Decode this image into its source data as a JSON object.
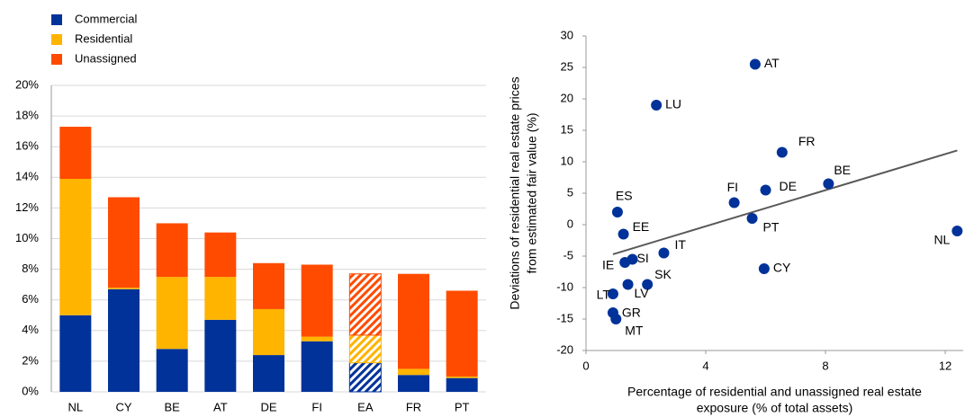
{
  "chart_data": [
    {
      "type": "stacked_bar",
      "categories": [
        "NL",
        "CY",
        "BE",
        "AT",
        "DE",
        "FI",
        "EA",
        "FR",
        "PT"
      ],
      "series": [
        {
          "name": "Commercial",
          "color": "#003299",
          "values": [
            5.0,
            6.7,
            2.8,
            4.7,
            2.4,
            3.3,
            1.9,
            1.1,
            0.9
          ]
        },
        {
          "name": "Residential",
          "color": "#ffb400",
          "values": [
            8.9,
            0.1,
            4.7,
            2.8,
            3.0,
            0.3,
            1.8,
            0.4,
            0.1
          ]
        },
        {
          "name": "Unassigned",
          "color": "#ff4b00",
          "values": [
            3.4,
            5.9,
            3.5,
            2.9,
            3.0,
            4.7,
            4.0,
            6.2,
            5.6
          ]
        }
      ],
      "hatched": [
        false,
        false,
        false,
        false,
        false,
        false,
        true,
        false,
        false
      ],
      "ylim": [
        0,
        20
      ],
      "yticks": [
        {
          "value": 0,
          "label": "0%"
        },
        {
          "value": 2,
          "label": "2%"
        },
        {
          "value": 4,
          "label": "4%"
        },
        {
          "value": 6,
          "label": "6%"
        },
        {
          "value": 8,
          "label": "8%"
        },
        {
          "value": 10,
          "label": "10%"
        },
        {
          "value": 12,
          "label": "12%"
        },
        {
          "value": 14,
          "label": "14%"
        },
        {
          "value": 16,
          "label": "16%"
        },
        {
          "value": 18,
          "label": "18%"
        },
        {
          "value": 20,
          "label": "20%"
        }
      ],
      "grid": true,
      "legend": "top-left"
    },
    {
      "type": "scatter",
      "x_label": [
        "Percentage of residential and unassigned real estate",
        "exposure (% of total assets)"
      ],
      "y_label": [
        "Deviations of residential real estate prices",
        "from estimated fair value (%)"
      ],
      "labels": [
        "AT",
        "LU",
        "FR",
        "BE",
        "DE",
        "FI",
        "PT",
        "ES",
        "EE",
        "NL",
        "IT",
        "SI",
        "IE",
        "CY",
        "SK",
        "LV",
        "LT",
        "GR",
        "MT"
      ],
      "x": [
        5.65,
        2.35,
        6.55,
        8.1,
        6.0,
        4.95,
        5.55,
        1.05,
        1.25,
        12.4,
        2.6,
        1.55,
        1.3,
        5.95,
        2.05,
        1.4,
        0.9,
        0.9,
        1.0
      ],
      "values": [
        25.5,
        19,
        11.5,
        6.5,
        5.5,
        3.5,
        1,
        2,
        -1.5,
        -1,
        -4.5,
        -5.5,
        -6,
        -7,
        -9.5,
        -9.5,
        -11,
        -14,
        -15
      ],
      "color": "#003299",
      "trendline": {
        "x": [
          0.9,
          12.4
        ],
        "y": [
          -4.7,
          11.8
        ],
        "color": "#595959"
      },
      "xlim": [
        0,
        12.6
      ],
      "xticks": [
        0,
        4,
        8,
        12
      ],
      "ylim": [
        -20,
        30
      ],
      "yticks": [
        -20,
        -15,
        -10,
        -5,
        0,
        5,
        10,
        15,
        20,
        25,
        30
      ],
      "grid": false
    }
  ]
}
